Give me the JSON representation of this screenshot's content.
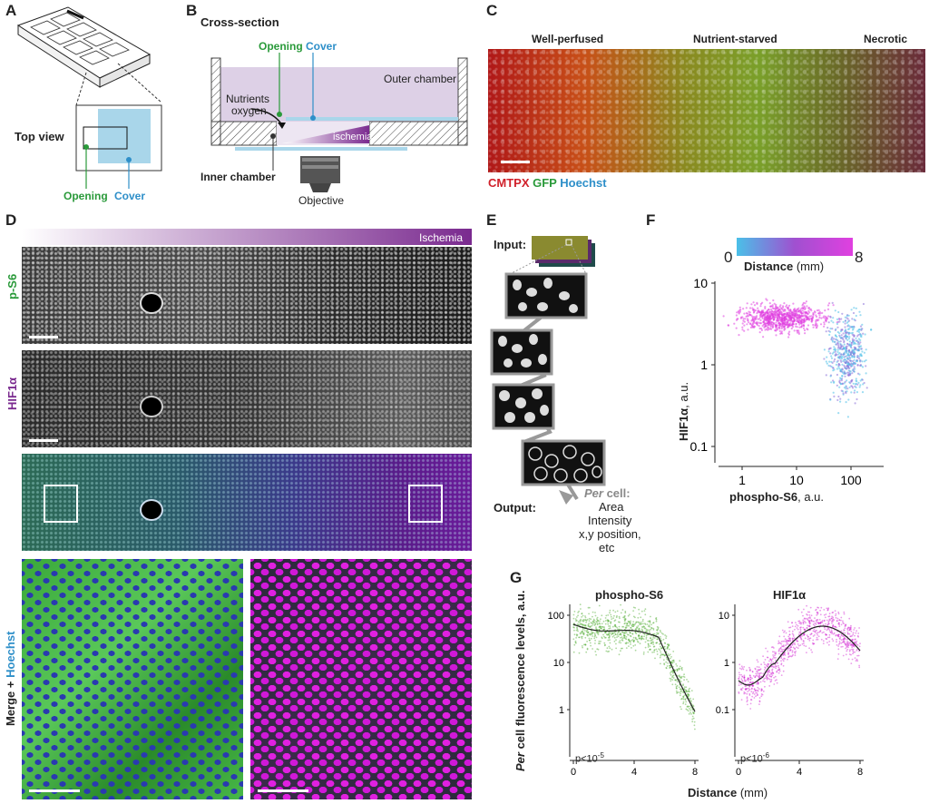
{
  "panels": {
    "A": "A",
    "B": "B",
    "C": "C",
    "D": "D",
    "E": "E",
    "F": "F",
    "G": "G"
  },
  "panelA": {
    "top_view": "Top view",
    "opening": "Opening",
    "cover": "Cover"
  },
  "panelB": {
    "title": "Cross-section",
    "opening": "Opening",
    "cover": "Cover",
    "outer_chamber": "Outer chamber",
    "nutrients": "Nutrients",
    "oxygen": "oxygen",
    "ischemia": "ischemia",
    "inner_chamber": "Inner chamber",
    "objective": "Objective"
  },
  "panelC": {
    "region1": "Well-perfused",
    "region2": "Nutrient-starved",
    "region3": "Necrotic",
    "stain1": "CMTPX",
    "stain2": "GFP",
    "stain3": "Hoechst"
  },
  "panelD": {
    "ischemia": "Ischemia",
    "row1": "p-S6",
    "row2": "HIF1α",
    "row3_a": "Merge + ",
    "row3_b": "Hoechst"
  },
  "panelE": {
    "input": "Input:",
    "output": "Output:",
    "per": "Per",
    "cell": " cell:",
    "area": "Area",
    "intensity": "Intensity",
    "xy": "x,y position,",
    "etc": "etc"
  },
  "panelF": {
    "cbar_min": "0",
    "cbar_max": "8",
    "cbar_label": "Distance",
    "cbar_unit": " (mm)",
    "ylabel": "HIF1α",
    "ylabel_unit": ", a.u.",
    "xlabel": "phospho-S6",
    "xlabel_unit": ", a.u.",
    "yticks": [
      "10",
      "1",
      "0.1"
    ],
    "xticks": [
      "1",
      "10",
      "100"
    ]
  },
  "panelG": {
    "ylabel_per": "Per",
    "ylabel_rest": " cell fluorescence levels, a.u.",
    "xlabel": "Distance",
    "xlabel_unit": " (mm)",
    "left": {
      "title": "phospho-S6",
      "pval": "p<10",
      "pexp": "-5",
      "yticks": [
        "100",
        "10",
        "1"
      ],
      "xticks": [
        "0",
        "4",
        "8"
      ]
    },
    "right": {
      "title": "HIF1α",
      "pval": "p<10",
      "pexp": "-6",
      "yticks": [
        "10",
        "1",
        "0.1"
      ],
      "xticks": [
        "0",
        "4",
        "8"
      ]
    }
  },
  "colors": {
    "green": "#2a9a3a",
    "blue": "#2e8fc9",
    "purple": "#7a2a8f",
    "red": "#d0202a",
    "magenta": "#e020e0"
  }
}
